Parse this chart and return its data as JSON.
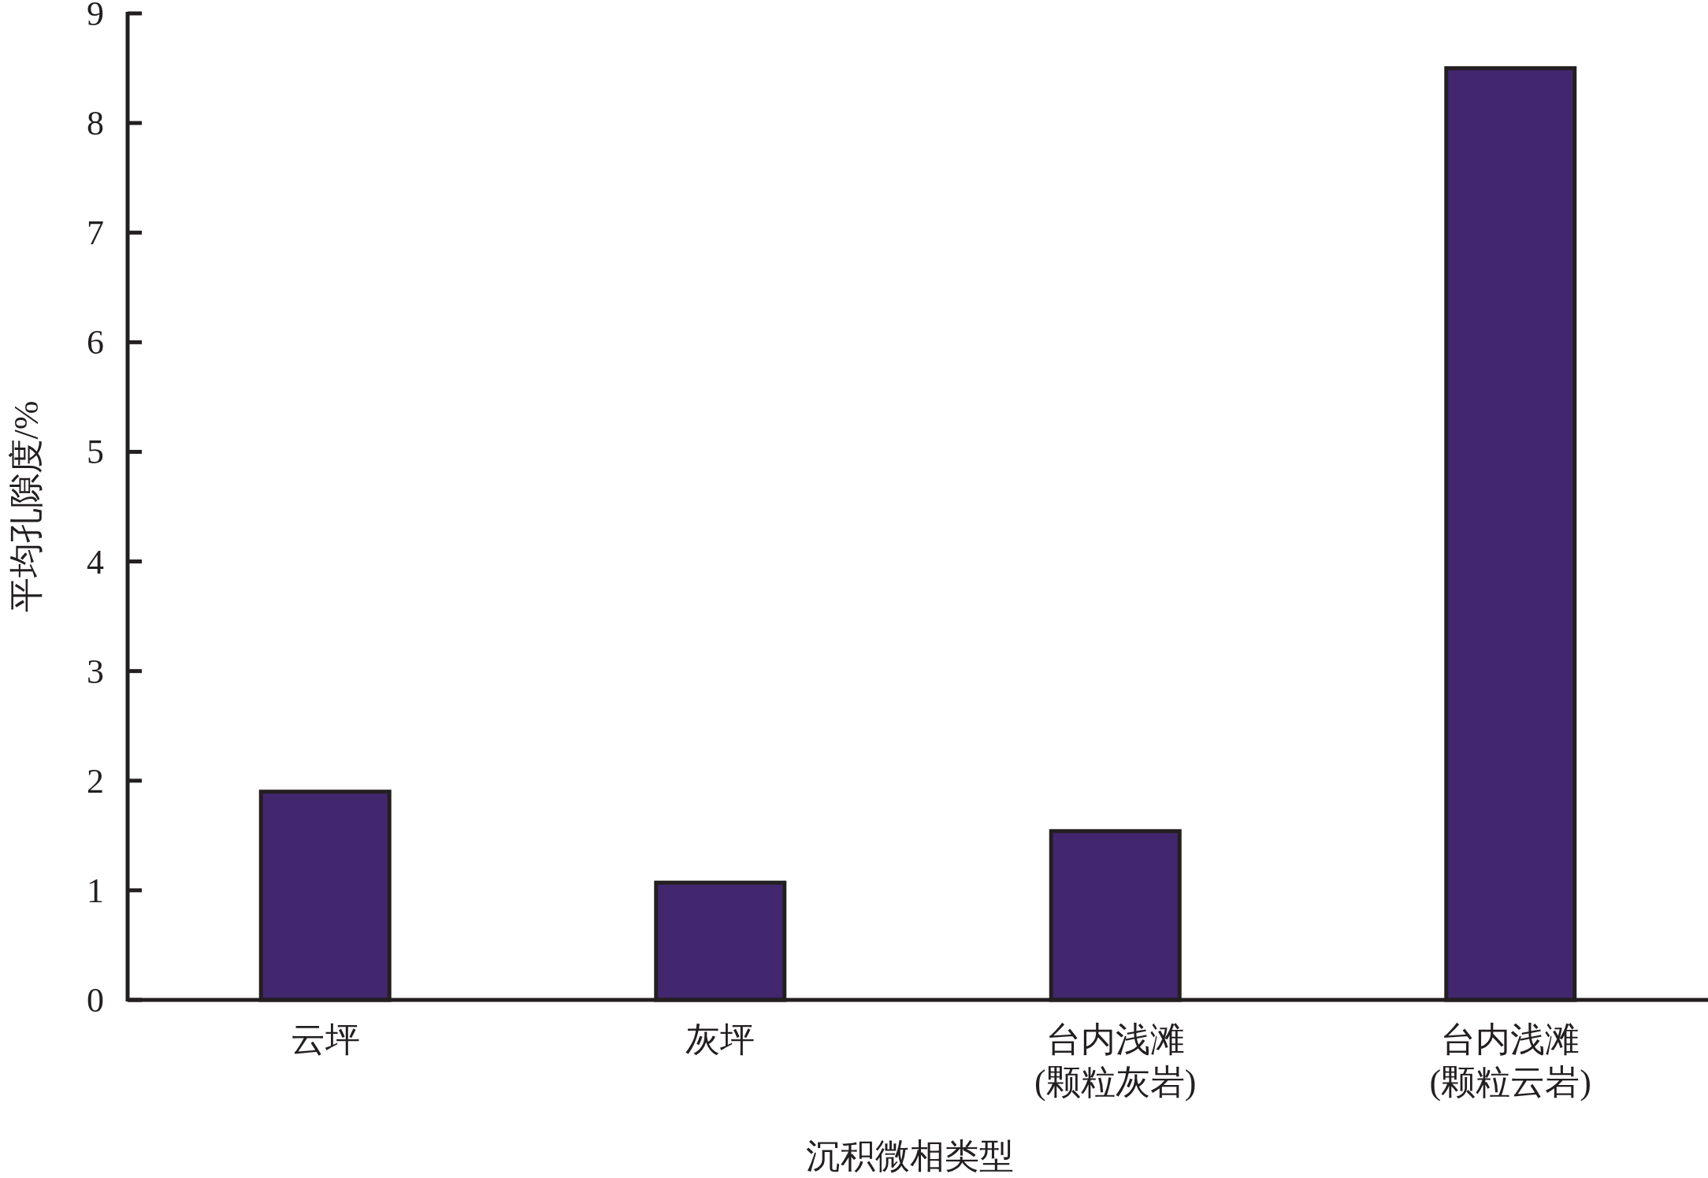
{
  "chart_data": {
    "type": "bar",
    "categories": [
      "云坪",
      "灰坪",
      "台内浅滩\n(颗粒灰岩)",
      "台内浅滩\n(颗粒云岩)"
    ],
    "values": [
      1.9,
      1.07,
      1.54,
      8.5
    ],
    "color": "#42276f",
    "xlabel": "沉积微相类型",
    "ylabel": "平均孔隙度/%",
    "ylim": [
      0,
      9
    ],
    "yticks": [
      0,
      1,
      2,
      3,
      4,
      5,
      6,
      7,
      8,
      9
    ]
  }
}
